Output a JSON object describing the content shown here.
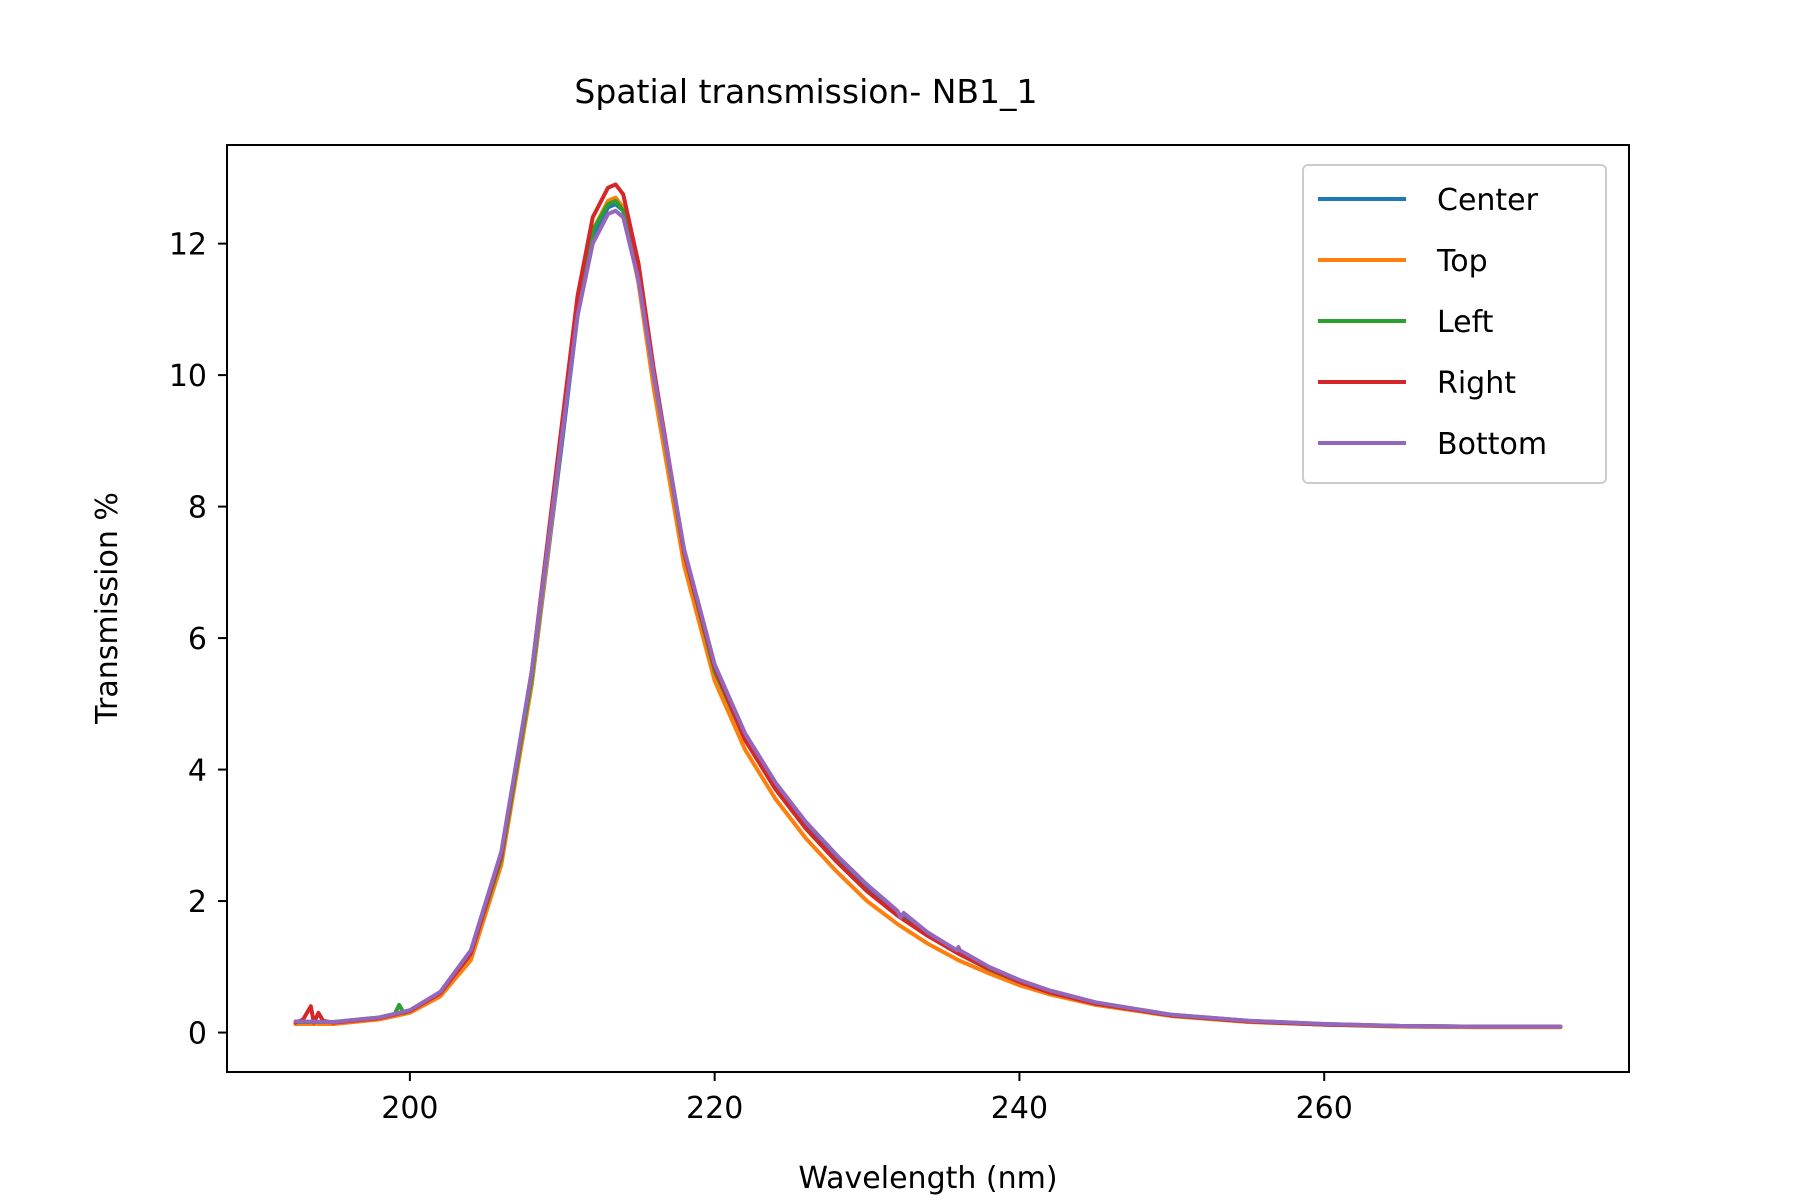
{
  "chart_data": {
    "type": "line",
    "title": "Spatial transmission- NB1_1",
    "xlabel": "Wavelength (nm)",
    "ylabel": "Transmission %",
    "xlim": [
      188,
      280
    ],
    "ylim": [
      -0.6,
      13.5
    ],
    "xticks": [
      200,
      220,
      240,
      260
    ],
    "yticks": [
      0,
      2,
      4,
      6,
      8,
      10,
      12
    ],
    "grid": false,
    "legend_position": "top-right",
    "series": [
      {
        "name": "Center",
        "color": "#1f77b4",
        "x": [
          192.5,
          195,
          198,
          200,
          202,
          204,
          206,
          208,
          210,
          211,
          212,
          213,
          213.5,
          214,
          215,
          216,
          218,
          220,
          222,
          224,
          226,
          228,
          230,
          232,
          234,
          236,
          238,
          240,
          242,
          245,
          250,
          255,
          260,
          265,
          270,
          275.5
        ],
        "y": [
          0.15,
          0.15,
          0.22,
          0.32,
          0.58,
          1.15,
          2.6,
          5.3,
          9.0,
          10.9,
          12.1,
          12.55,
          12.6,
          12.5,
          11.5,
          10.0,
          7.3,
          5.55,
          4.5,
          3.75,
          3.15,
          2.65,
          2.2,
          1.82,
          1.5,
          1.22,
          0.98,
          0.78,
          0.62,
          0.45,
          0.27,
          0.18,
          0.13,
          0.1,
          0.09,
          0.09
        ]
      },
      {
        "name": "Top",
        "color": "#ff7f0e",
        "x": [
          192.5,
          195,
          198,
          200,
          202,
          204,
          206,
          208,
          210,
          211,
          212,
          213,
          213.5,
          214,
          215,
          216,
          218,
          220,
          222,
          224,
          226,
          228,
          230,
          232,
          234,
          236,
          238,
          240,
          242,
          245,
          250,
          255,
          260,
          265,
          270,
          275.5
        ],
        "y": [
          0.13,
          0.13,
          0.2,
          0.3,
          0.55,
          1.1,
          2.55,
          5.3,
          9.1,
          11.0,
          12.2,
          12.65,
          12.7,
          12.55,
          11.4,
          9.8,
          7.1,
          5.35,
          4.3,
          3.55,
          2.95,
          2.45,
          2.0,
          1.65,
          1.35,
          1.1,
          0.9,
          0.72,
          0.58,
          0.42,
          0.25,
          0.16,
          0.12,
          0.09,
          0.08,
          0.08
        ]
      },
      {
        "name": "Left",
        "color": "#2ca02c",
        "x": [
          192.5,
          195,
          198,
          199,
          199.3,
          199.6,
          200,
          202,
          204,
          206,
          208,
          210,
          211,
          212,
          213,
          213.5,
          214,
          215,
          216,
          218,
          220,
          222,
          224,
          226,
          228,
          230,
          232,
          234,
          236,
          238,
          240,
          242,
          245,
          250,
          255,
          260,
          265,
          270,
          275.5
        ],
        "y": [
          0.16,
          0.16,
          0.23,
          0.28,
          0.42,
          0.3,
          0.33,
          0.6,
          1.2,
          2.65,
          5.4,
          9.2,
          11.0,
          12.2,
          12.6,
          12.65,
          12.5,
          11.5,
          10.0,
          7.3,
          5.5,
          4.45,
          3.7,
          3.1,
          2.6,
          2.15,
          1.78,
          1.47,
          1.2,
          0.96,
          0.77,
          0.61,
          0.44,
          0.26,
          0.17,
          0.12,
          0.1,
          0.09,
          0.09
        ]
      },
      {
        "name": "Right",
        "color": "#d62728",
        "x": [
          192.5,
          193,
          193.5,
          193.7,
          194,
          194.3,
          195,
          198,
          200,
          202,
          204,
          206,
          208,
          210,
          211,
          212,
          213,
          213.5,
          214,
          215,
          216,
          218,
          220,
          222,
          224,
          226,
          228,
          230,
          232,
          234,
          236,
          238,
          240,
          242,
          245,
          250,
          255,
          260,
          265,
          270,
          275.5
        ],
        "y": [
          0.15,
          0.2,
          0.4,
          0.15,
          0.3,
          0.18,
          0.15,
          0.22,
          0.33,
          0.6,
          1.2,
          2.7,
          5.5,
          9.3,
          11.2,
          12.4,
          12.85,
          12.9,
          12.75,
          11.7,
          10.1,
          7.3,
          5.55,
          4.45,
          3.7,
          3.1,
          2.6,
          2.15,
          1.78,
          1.47,
          1.2,
          0.97,
          0.77,
          0.61,
          0.44,
          0.26,
          0.17,
          0.12,
          0.1,
          0.09,
          0.09
        ]
      },
      {
        "name": "Bottom",
        "color": "#9467bd",
        "x": [
          192.5,
          195,
          198,
          200,
          202,
          204,
          206,
          208,
          210,
          211,
          212,
          213,
          213.5,
          214,
          215,
          216,
          218,
          220,
          222,
          224,
          226,
          228,
          230,
          232,
          232.2,
          232.4,
          234,
          235.9,
          236,
          236.1,
          238,
          240,
          242,
          245,
          250,
          255,
          260,
          265,
          270,
          275.5
        ],
        "y": [
          0.17,
          0.16,
          0.23,
          0.34,
          0.62,
          1.25,
          2.75,
          5.5,
          9.1,
          10.9,
          12.0,
          12.45,
          12.5,
          12.4,
          11.45,
          10.0,
          7.35,
          5.6,
          4.55,
          3.8,
          3.2,
          2.7,
          2.25,
          1.85,
          1.75,
          1.82,
          1.52,
          1.25,
          1.3,
          1.25,
          1.0,
          0.8,
          0.64,
          0.46,
          0.27,
          0.18,
          0.13,
          0.1,
          0.09,
          0.09
        ]
      }
    ]
  }
}
